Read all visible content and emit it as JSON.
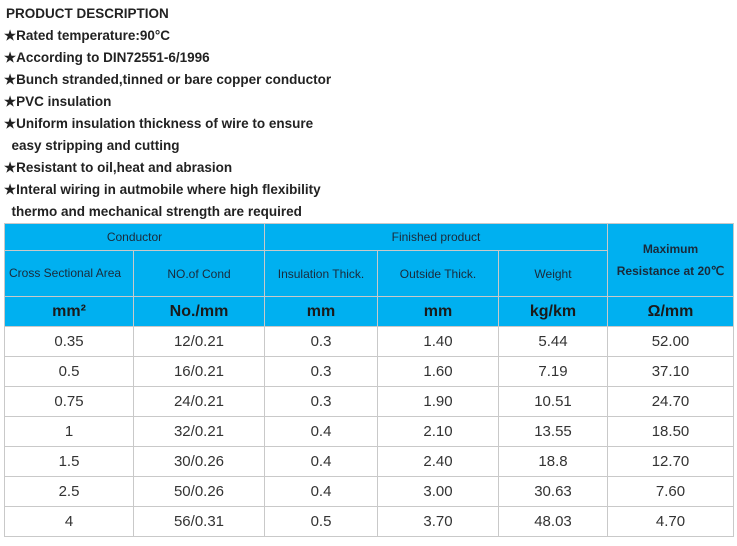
{
  "description": {
    "title": "PRODUCT DESCRIPTION",
    "lines": [
      "★Rated temperature:90°C",
      "★According to DIN72551-6/1996",
      "★Bunch stranded,tinned or bare copper conductor",
      "★PVC insulation",
      "★Uniform insulation thickness of wire to ensure",
      "  easy stripping and cutting",
      "★Resistant to oil,heat and abrasion",
      "★Interal wiring in autmobile where high flexibility",
      "  thermo and mechanical strength are required"
    ]
  },
  "table": {
    "group_headers": {
      "conductor": "Conductor",
      "finished": "Finished product",
      "max_res_1": "Maximum",
      "max_res_2": "Resistance at 20℃"
    },
    "columns": [
      "Cross Sectional Area",
      "NO.of Cond",
      "Insulation Thick.",
      "Outside Thick.",
      "Weight"
    ],
    "units": [
      "mm²",
      "No./mm",
      "mm",
      "mm",
      "kg/km",
      "Ω/mm"
    ],
    "rows": [
      [
        "0.35",
        "12/0.21",
        "0.3",
        "1.40",
        "5.44",
        "52.00"
      ],
      [
        "0.5",
        "16/0.21",
        "0.3",
        "1.60",
        "7.19",
        "37.10"
      ],
      [
        "0.75",
        "24/0.21",
        "0.3",
        "1.90",
        "10.51",
        "24.70"
      ],
      [
        "1",
        "32/0.21",
        "0.4",
        "2.10",
        "13.55",
        "18.50"
      ],
      [
        "1.5",
        "30/0.26",
        "0.4",
        "2.40",
        "18.8",
        "12.70"
      ],
      [
        "2.5",
        "50/0.26",
        "0.4",
        "3.00",
        "30.63",
        "7.60"
      ],
      [
        "4",
        "56/0.31",
        "0.5",
        "3.70",
        "48.03",
        "4.70"
      ]
    ],
    "header_color": "#00b0f0"
  }
}
